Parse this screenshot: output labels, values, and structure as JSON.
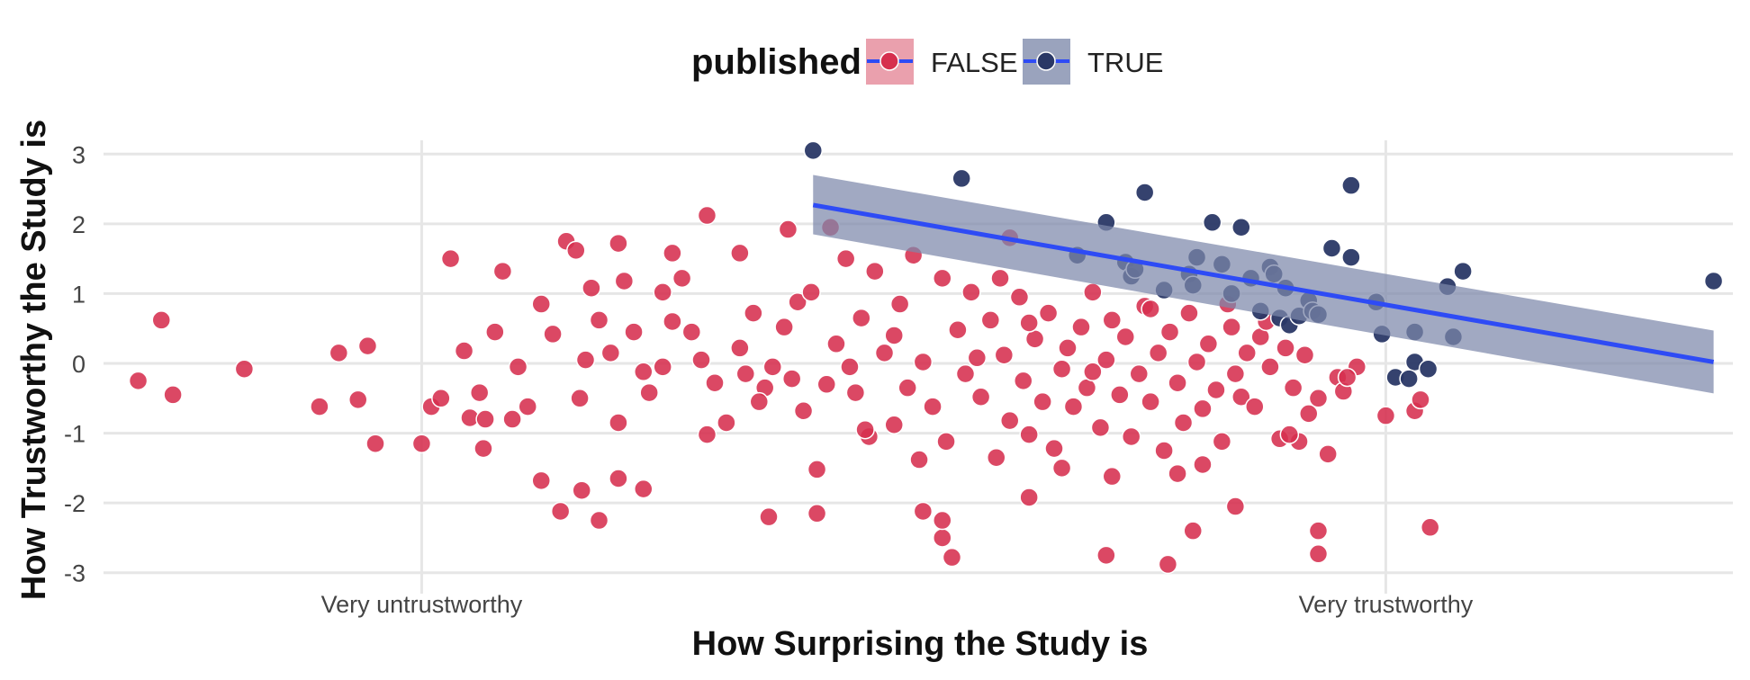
{
  "chart_data": {
    "type": "scatter",
    "xlabel": "How Surprising the Study is",
    "ylabel": "How Trustworthy the Study is",
    "xlim": [
      -3.25,
      5.2
    ],
    "ylim": [
      -3.3,
      3.3
    ],
    "x_ticks": [
      {
        "value": -1.6,
        "label": "Very untrustworthy"
      },
      {
        "value": 3.4,
        "label": "Very trustworthy"
      }
    ],
    "y_ticks": [
      {
        "value": 3,
        "label": "3"
      },
      {
        "value": 2,
        "label": "2"
      },
      {
        "value": 1,
        "label": "1"
      },
      {
        "value": 0,
        "label": "0"
      },
      {
        "value": -1,
        "label": "-1"
      },
      {
        "value": -2,
        "label": "-2"
      },
      {
        "value": -3,
        "label": "-3"
      }
    ],
    "grid": true,
    "legend": {
      "title": "published",
      "position": "top",
      "entries": [
        {
          "label": "FALSE",
          "point_color": "#d62f4e",
          "key_fill": "#eaa0ad"
        },
        {
          "label": "TRUE",
          "point_color": "#2a3866",
          "key_fill": "#9aa3bd"
        }
      ]
    },
    "colors": {
      "false_points": "#d62f4e",
      "true_points": "#2a3866",
      "fit_line": "#2e4bf5",
      "ribbon": "#7d88aa"
    },
    "series": [
      {
        "name": "FALSE",
        "points": [
          [
            -2.95,
            0.62
          ],
          [
            -3.07,
            -0.25
          ],
          [
            -2.89,
            -0.45
          ],
          [
            -2.52,
            -0.08
          ],
          [
            -2.13,
            -0.62
          ],
          [
            -2.03,
            0.15
          ],
          [
            -1.93,
            -0.52
          ],
          [
            -1.88,
            0.25
          ],
          [
            -1.84,
            -1.15
          ],
          [
            -1.6,
            -1.15
          ],
          [
            -1.55,
            -0.62
          ],
          [
            -1.5,
            -0.5
          ],
          [
            -1.45,
            1.5
          ],
          [
            -1.38,
            0.18
          ],
          [
            -1.3,
            -0.42
          ],
          [
            -1.35,
            -0.78
          ],
          [
            -1.27,
            -0.8
          ],
          [
            -1.22,
            0.45
          ],
          [
            -1.18,
            1.32
          ],
          [
            -1.1,
            -0.05
          ],
          [
            -1.05,
            -0.62
          ],
          [
            -1.28,
            -1.22
          ],
          [
            -1.13,
            -0.8
          ],
          [
            -0.92,
            0.42
          ],
          [
            -0.98,
            0.85
          ],
          [
            -0.85,
            1.75
          ],
          [
            -0.78,
            -0.5
          ],
          [
            -0.75,
            0.05
          ],
          [
            -0.68,
            0.62
          ],
          [
            -0.62,
            0.15
          ],
          [
            -0.58,
            -0.85
          ],
          [
            -0.55,
            1.18
          ],
          [
            -0.5,
            0.45
          ],
          [
            -0.45,
            -0.12
          ],
          [
            -0.42,
            -0.42
          ],
          [
            -0.35,
            1.02
          ],
          [
            -0.3,
            0.6
          ],
          [
            -0.25,
            1.22
          ],
          [
            -0.2,
            0.45
          ],
          [
            -0.15,
            0.05
          ],
          [
            -0.12,
            2.12
          ],
          [
            -0.08,
            -0.28
          ],
          [
            -0.02,
            -0.85
          ],
          [
            0.05,
            0.22
          ],
          [
            0.08,
            -0.15
          ],
          [
            0.12,
            0.72
          ],
          [
            0.18,
            -0.35
          ],
          [
            0.22,
            -0.05
          ],
          [
            0.28,
            0.52
          ],
          [
            0.32,
            -0.22
          ],
          [
            0.35,
            0.88
          ],
          [
            0.38,
            -0.68
          ],
          [
            0.42,
            1.02
          ],
          [
            0.45,
            -1.52
          ],
          [
            0.5,
            -0.3
          ],
          [
            0.55,
            0.28
          ],
          [
            0.6,
            1.5
          ],
          [
            0.62,
            -0.05
          ],
          [
            0.65,
            -0.42
          ],
          [
            0.68,
            0.65
          ],
          [
            0.72,
            -1.05
          ],
          [
            0.75,
            1.32
          ],
          [
            0.8,
            0.15
          ],
          [
            0.85,
            -0.88
          ],
          [
            0.88,
            0.85
          ],
          [
            0.92,
            -0.35
          ],
          [
            0.95,
            1.55
          ],
          [
            1.0,
            0.02
          ],
          [
            1.05,
            -0.62
          ],
          [
            1.1,
            1.22
          ],
          [
            1.12,
            -1.12
          ],
          [
            1.18,
            0.48
          ],
          [
            1.22,
            -0.15
          ],
          [
            1.25,
            1.02
          ],
          [
            1.3,
            -0.48
          ],
          [
            1.35,
            0.62
          ],
          [
            1.38,
            -1.35
          ],
          [
            1.42,
            0.12
          ],
          [
            1.45,
            -0.82
          ],
          [
            1.5,
            0.95
          ],
          [
            1.52,
            -0.25
          ],
          [
            1.55,
            -1.02
          ],
          [
            1.58,
            0.35
          ],
          [
            1.62,
            -0.55
          ],
          [
            1.65,
            0.72
          ],
          [
            1.68,
            -1.22
          ],
          [
            1.72,
            -0.08
          ],
          [
            1.75,
            0.22
          ],
          [
            1.78,
            -0.62
          ],
          [
            1.82,
            0.52
          ],
          [
            1.85,
            -0.35
          ],
          [
            1.88,
            1.02
          ],
          [
            1.92,
            -0.92
          ],
          [
            1.95,
            0.05
          ],
          [
            1.98,
            0.62
          ],
          [
            2.02,
            -0.45
          ],
          [
            2.05,
            0.38
          ],
          [
            2.08,
            -1.05
          ],
          [
            2.12,
            -0.15
          ],
          [
            2.15,
            0.82
          ],
          [
            2.18,
            -0.55
          ],
          [
            2.22,
            0.15
          ],
          [
            2.25,
            -1.25
          ],
          [
            2.28,
            0.45
          ],
          [
            2.32,
            -0.28
          ],
          [
            2.35,
            -0.85
          ],
          [
            2.38,
            0.72
          ],
          [
            2.42,
            0.02
          ],
          [
            2.45,
            -0.65
          ],
          [
            2.48,
            0.28
          ],
          [
            2.52,
            -0.38
          ],
          [
            2.55,
            -1.12
          ],
          [
            2.6,
            0.52
          ],
          [
            2.62,
            -0.15
          ],
          [
            2.65,
            -0.48
          ],
          [
            2.68,
            0.15
          ],
          [
            2.72,
            -0.62
          ],
          [
            2.75,
            0.38
          ],
          [
            2.8,
            -0.05
          ],
          [
            2.85,
            -1.08
          ],
          [
            2.88,
            0.22
          ],
          [
            2.92,
            -0.35
          ],
          [
            2.95,
            -1.12
          ],
          [
            3.0,
            -0.72
          ],
          [
            3.05,
            -0.5
          ],
          [
            3.1,
            -1.3
          ],
          [
            3.15,
            -0.2
          ],
          [
            3.18,
            -0.4
          ],
          [
            3.25,
            -0.05
          ],
          [
            3.05,
            -2.4
          ],
          [
            3.05,
            -2.73
          ],
          [
            3.4,
            -0.75
          ],
          [
            3.55,
            -0.68
          ],
          [
            3.58,
            -0.52
          ],
          [
            3.63,
            -2.35
          ],
          [
            -0.68,
            -2.25
          ],
          [
            -0.77,
            -1.82
          ],
          [
            -0.88,
            -2.12
          ],
          [
            -0.58,
            -1.65
          ],
          [
            -0.45,
            -1.8
          ],
          [
            -0.98,
            -1.68
          ],
          [
            -0.58,
            1.72
          ],
          [
            -0.8,
            1.62
          ],
          [
            -0.3,
            1.58
          ],
          [
            0.2,
            -2.2
          ],
          [
            0.45,
            -2.15
          ],
          [
            1.0,
            -2.12
          ],
          [
            1.1,
            -2.5
          ],
          [
            1.15,
            -2.78
          ],
          [
            1.55,
            -1.92
          ],
          [
            1.95,
            -2.75
          ],
          [
            2.27,
            -2.88
          ],
          [
            2.4,
            -2.4
          ],
          [
            2.62,
            -2.05
          ],
          [
            1.1,
            -2.25
          ],
          [
            1.98,
            -1.62
          ],
          [
            2.45,
            -1.45
          ],
          [
            1.45,
            1.8
          ],
          [
            0.3,
            1.92
          ],
          [
            0.52,
            1.95
          ],
          [
            0.05,
            1.58
          ],
          [
            -0.72,
            1.08
          ],
          [
            -0.35,
            -0.05
          ],
          [
            0.15,
            -0.55
          ],
          [
            0.7,
            -0.95
          ],
          [
            1.28,
            0.08
          ],
          [
            1.88,
            -0.12
          ],
          [
            2.58,
            0.85
          ],
          [
            2.78,
            0.6
          ],
          [
            2.98,
            0.12
          ],
          [
            0.85,
            0.4
          ],
          [
            1.55,
            0.58
          ],
          [
            2.18,
            0.78
          ],
          [
            -0.12,
            -1.02
          ],
          [
            0.98,
            -1.38
          ],
          [
            1.72,
            -1.5
          ],
          [
            2.32,
            -1.58
          ],
          [
            3.2,
            -0.2
          ],
          [
            2.9,
            -1.02
          ],
          [
            1.4,
            1.22
          ]
        ]
      },
      {
        "name": "TRUE",
        "points": [
          [
            0.43,
            3.05
          ],
          [
            1.2,
            2.65
          ],
          [
            1.8,
            1.55
          ],
          [
            1.95,
            2.02
          ],
          [
            2.05,
            1.45
          ],
          [
            2.08,
            1.25
          ],
          [
            2.1,
            1.35
          ],
          [
            2.15,
            2.45
          ],
          [
            2.25,
            1.05
          ],
          [
            2.38,
            1.28
          ],
          [
            2.4,
            1.12
          ],
          [
            2.42,
            1.52
          ],
          [
            2.5,
            2.02
          ],
          [
            2.55,
            1.42
          ],
          [
            2.6,
            1.0
          ],
          [
            2.65,
            1.95
          ],
          [
            2.7,
            1.22
          ],
          [
            2.75,
            0.75
          ],
          [
            2.8,
            1.38
          ],
          [
            2.82,
            1.28
          ],
          [
            2.85,
            0.65
          ],
          [
            2.88,
            1.08
          ],
          [
            2.9,
            0.55
          ],
          [
            2.95,
            0.68
          ],
          [
            3.0,
            0.9
          ],
          [
            3.02,
            0.75
          ],
          [
            3.05,
            0.7
          ],
          [
            3.12,
            1.65
          ],
          [
            3.22,
            1.52
          ],
          [
            3.22,
            2.55
          ],
          [
            3.35,
            0.88
          ],
          [
            3.38,
            0.42
          ],
          [
            3.45,
            -0.2
          ],
          [
            3.55,
            0.02
          ],
          [
            3.52,
            -0.22
          ],
          [
            3.55,
            0.45
          ],
          [
            3.62,
            -0.08
          ],
          [
            3.72,
            1.1
          ],
          [
            3.75,
            0.38
          ],
          [
            3.8,
            1.32
          ],
          [
            5.1,
            1.18
          ]
        ]
      }
    ],
    "fit_line": {
      "series": "TRUE",
      "x_range": [
        0.43,
        5.1
      ],
      "y_at_start": 2.27,
      "y_at_end": 0.02,
      "ribbon_upper": [
        2.7,
        0.47
      ],
      "ribbon_lower": [
        1.85,
        -0.43
      ]
    }
  }
}
